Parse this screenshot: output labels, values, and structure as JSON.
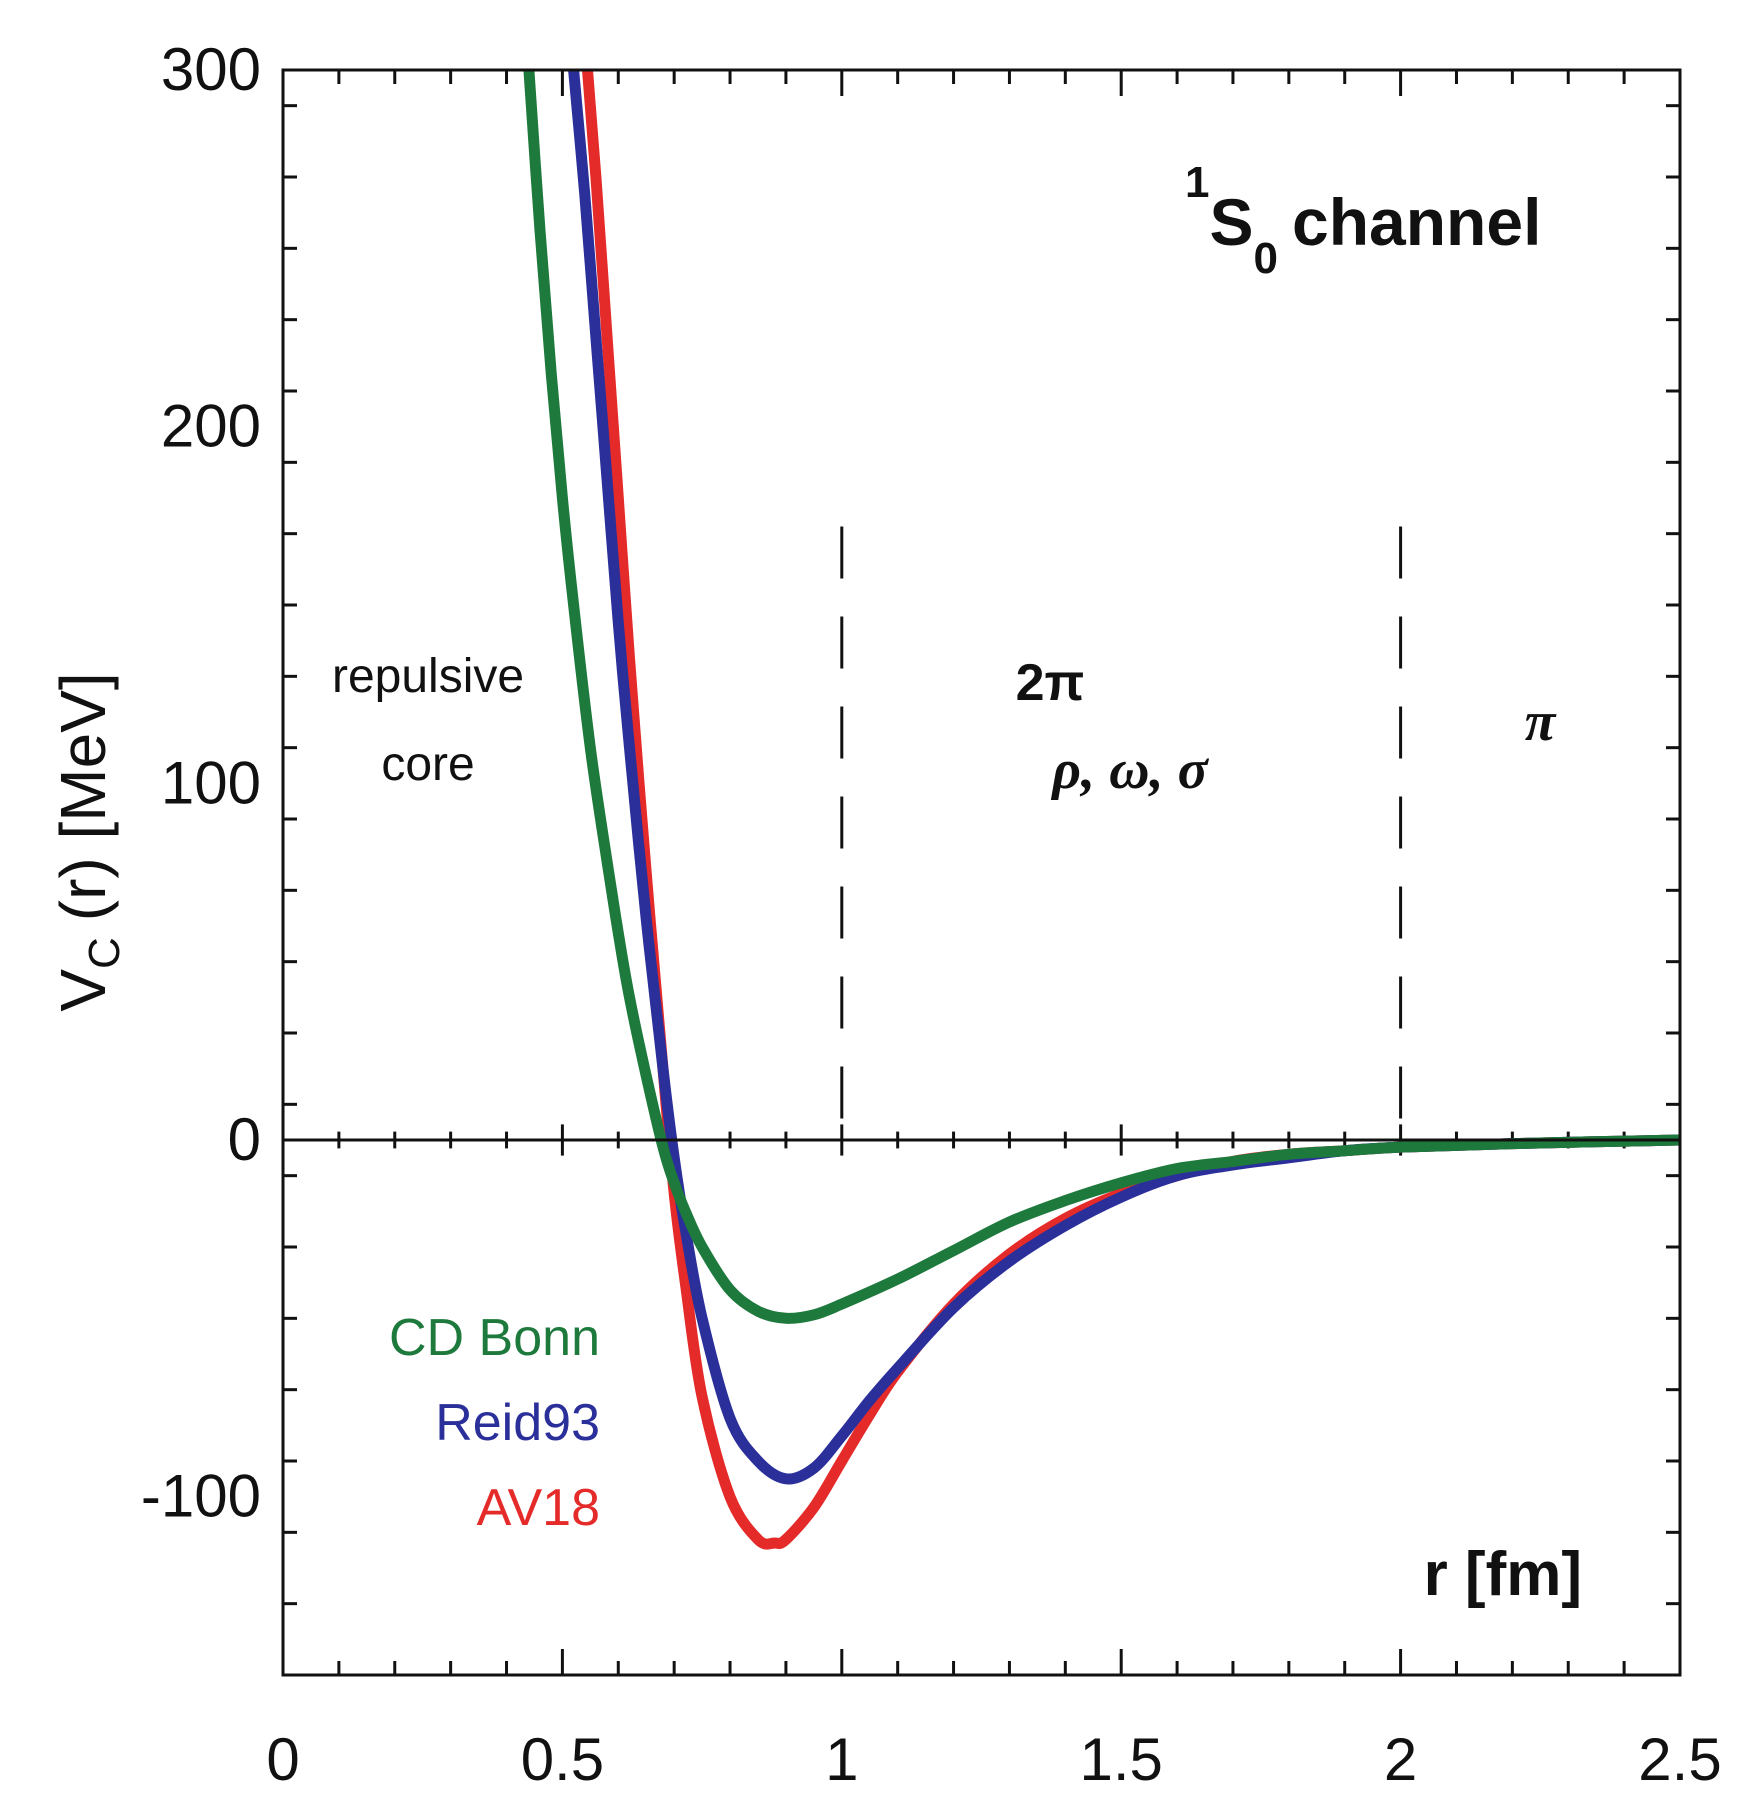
{
  "chart_data": {
    "type": "line",
    "title": {
      "superscript": "1",
      "main": "S",
      "subscript": "0",
      "suffix": "channel"
    },
    "xlabel": "r [fm]",
    "ylabel": "V",
    "ylabel_sub": "C",
    "ylabel_rest": "(r) [MeV]",
    "xlim": [
      0,
      2.5
    ],
    "ylim": [
      -150,
      300
    ],
    "xticks": [
      0,
      0.5,
      1,
      1.5,
      2,
      2.5
    ],
    "xtick_labels": [
      "0",
      "0.5",
      "1",
      "1.5",
      "2",
      "2.5"
    ],
    "yticks": [
      -100,
      0,
      100,
      200,
      300
    ],
    "ytick_labels": [
      "-100",
      "0",
      "100",
      "200",
      "300"
    ],
    "vertical_dashed_lines": [
      1,
      2
    ],
    "annotations": {
      "core_line1": "repulsive",
      "core_line2": "core",
      "mid_line1": "2π",
      "mid_line2": "ρ, ω, σ",
      "right_label": "π"
    },
    "series": [
      {
        "name": "CD Bonn",
        "color": "#1e7a3c",
        "x": [
          0.44,
          0.46,
          0.48,
          0.5,
          0.52,
          0.55,
          0.58,
          0.6,
          0.62,
          0.65,
          0.68,
          0.7,
          0.72,
          0.75,
          0.8,
          0.85,
          0.9,
          0.95,
          1.0,
          1.1,
          1.2,
          1.3,
          1.4,
          1.5,
          1.6,
          1.7,
          1.8,
          1.9,
          2.0,
          2.2,
          2.5
        ],
        "y": [
          300,
          255,
          215,
          180,
          150,
          110,
          78,
          58,
          40,
          18,
          -2,
          -12,
          -20,
          -30,
          -42,
          -48,
          -50,
          -49,
          -46,
          -39,
          -31,
          -23,
          -17,
          -12,
          -8,
          -6,
          -4,
          -3,
          -2,
          -1,
          0
        ]
      },
      {
        "name": "Reid93",
        "color": "#2b2f9a",
        "x": [
          0.52,
          0.54,
          0.56,
          0.58,
          0.6,
          0.62,
          0.65,
          0.68,
          0.7,
          0.72,
          0.75,
          0.8,
          0.85,
          0.9,
          0.95,
          1.0,
          1.05,
          1.1,
          1.2,
          1.3,
          1.4,
          1.5,
          1.6,
          1.7,
          1.8,
          1.9,
          2.0,
          2.2,
          2.5
        ],
        "y": [
          300,
          265,
          225,
          185,
          145,
          110,
          62,
          20,
          -5,
          -25,
          -50,
          -78,
          -90,
          -95,
          -92,
          -83,
          -73,
          -64,
          -47,
          -34,
          -24,
          -16,
          -10,
          -7,
          -5,
          -3,
          -2,
          -1,
          0
        ]
      },
      {
        "name": "AV18",
        "color": "#e52a2a",
        "x": [
          0.545,
          0.56,
          0.58,
          0.6,
          0.62,
          0.65,
          0.68,
          0.7,
          0.72,
          0.75,
          0.8,
          0.85,
          0.88,
          0.9,
          0.95,
          1.0,
          1.05,
          1.1,
          1.2,
          1.3,
          1.4,
          1.5,
          1.6,
          1.7,
          1.8,
          1.9,
          2.0,
          2.2,
          2.5
        ],
        "y": [
          300,
          270,
          225,
          180,
          135,
          75,
          20,
          -15,
          -40,
          -72,
          -100,
          -112,
          -113,
          -112,
          -103,
          -90,
          -77,
          -65,
          -46,
          -32,
          -22,
          -15,
          -10,
          -6,
          -4,
          -3,
          -2,
          -1,
          0
        ]
      }
    ]
  }
}
